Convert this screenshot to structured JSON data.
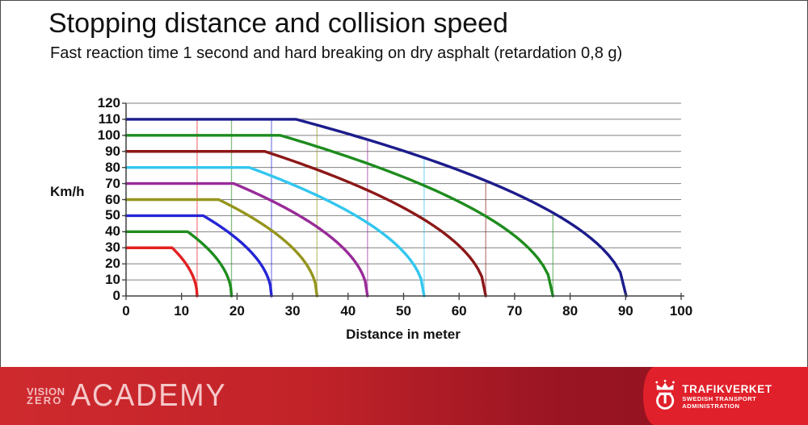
{
  "title": "Stopping distance and collision speed",
  "subtitle": "Fast reaction time 1 second and hard breaking on dry asphalt (retardation 0,8 g)",
  "chart_data": {
    "type": "line",
    "title": "Stopping distance and collision speed",
    "xlabel": "Distance in meter",
    "ylabel": "Km/h",
    "xlim": [
      0,
      100
    ],
    "ylim": [
      0,
      120
    ],
    "x_ticks": [
      0,
      10,
      20,
      30,
      40,
      50,
      60,
      70,
      80,
      90,
      100
    ],
    "y_ticks": [
      0,
      10,
      20,
      30,
      40,
      50,
      60,
      70,
      80,
      90,
      100,
      110,
      120
    ],
    "grid": "horizontal",
    "legend": "none",
    "reaction_time_s": 1,
    "retardation_g": 0.8,
    "series": [
      {
        "name": "30 km/h",
        "speed_kmh": 30,
        "color": "#e32020",
        "reaction_distance_m": 8.3,
        "stopping_distance_m": 12.8
      },
      {
        "name": "40 km/h",
        "speed_kmh": 40,
        "color": "#1e8c1e",
        "reaction_distance_m": 11.1,
        "stopping_distance_m": 19.0
      },
      {
        "name": "50 km/h",
        "speed_kmh": 50,
        "color": "#2525d6",
        "reaction_distance_m": 13.9,
        "stopping_distance_m": 26.2
      },
      {
        "name": "60 km/h",
        "speed_kmh": 60,
        "color": "#95951e",
        "reaction_distance_m": 16.7,
        "stopping_distance_m": 34.4
      },
      {
        "name": "70 km/h",
        "speed_kmh": 70,
        "color": "#982b98",
        "reaction_distance_m": 19.4,
        "stopping_distance_m": 43.5
      },
      {
        "name": "80 km/h",
        "speed_kmh": 80,
        "color": "#33c6ee",
        "reaction_distance_m": 22.2,
        "stopping_distance_m": 53.7
      },
      {
        "name": "90 km/h",
        "speed_kmh": 90,
        "color": "#8c1818",
        "reaction_distance_m": 25.0,
        "stopping_distance_m": 64.8
      },
      {
        "name": "100 km/h",
        "speed_kmh": 100,
        "color": "#1e8c1e",
        "reaction_distance_m": 27.8,
        "stopping_distance_m": 76.9
      },
      {
        "name": "110 km/h",
        "speed_kmh": 110,
        "color": "#1c1c8c",
        "reaction_distance_m": 30.6,
        "stopping_distance_m": 90.1
      }
    ],
    "drop_lines_at_stopping_distance_for_speeds": [
      30,
      40,
      50,
      60,
      70,
      80,
      90,
      100
    ],
    "gridline_color": "#808080",
    "axis_color": "#404040"
  },
  "footer": {
    "brand_line1": "VISION",
    "brand_line2": "ZERO",
    "brand_academy": "ACADEMY",
    "logo_name": "TRAFIKVERKET",
    "logo_subtitle": "SWEDISH TRANSPORT ADMINISTRATION",
    "banner_color_left": "#ce2a2e",
    "banner_color_right": "#8c1120",
    "panel_color": "#e0202a"
  }
}
